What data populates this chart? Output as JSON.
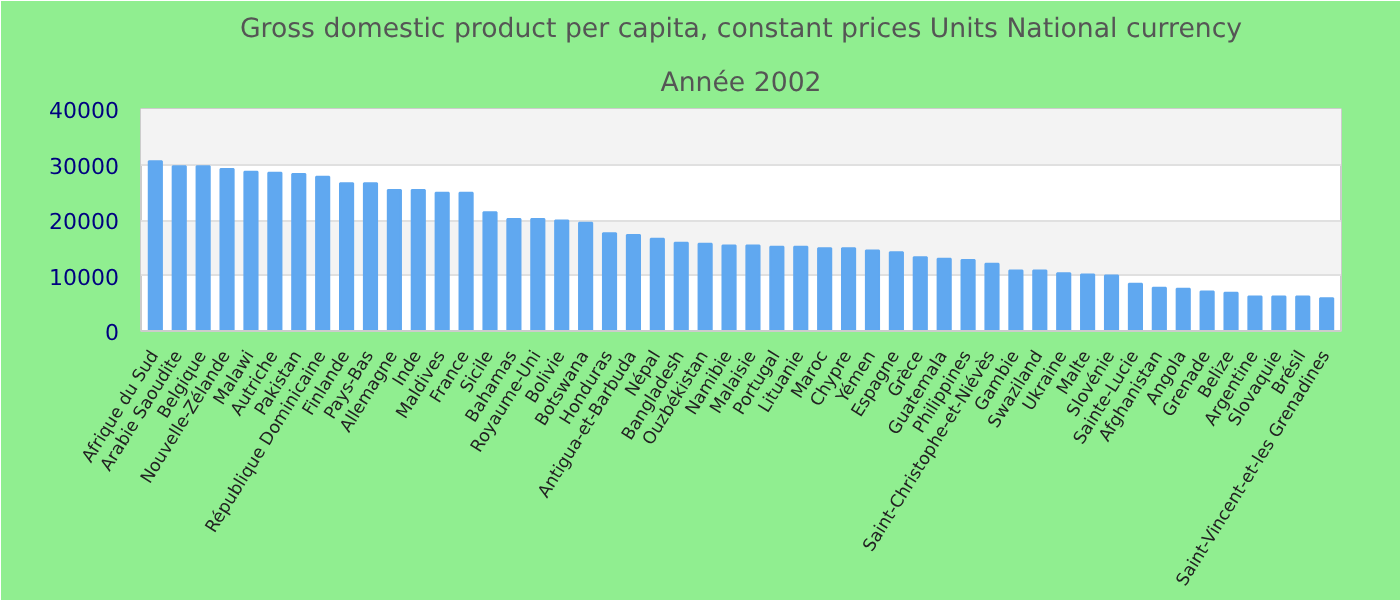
{
  "chart_data": {
    "type": "bar",
    "title": "Gross domestic product per capita, constant prices Units National currency",
    "subtitle": "Année 2002",
    "categories": [
      "Afrique du Sud",
      "Arabie Saoudite",
      "Belgique",
      "Nouvelle-Zélande",
      "Malawi",
      "Autriche",
      "Pakistan",
      "République Dominicaine",
      "Finlande",
      "Pays-Bas",
      "Allemagne",
      "Inde",
      "Maldives",
      "France",
      "Sicile",
      "Bahamas",
      "Royaume-Uni",
      "Bolivie",
      "Botswana",
      "Honduras",
      "Antigua-et-Barbuda",
      "Népal",
      "Bangladesh",
      "Ouzbékistan",
      "Namibie",
      "Malaisie",
      "Portugal",
      "Lituanie",
      "Maroc",
      "Chypre",
      "Yémen",
      "Espagne",
      "Grèce",
      "Guatemala",
      "Philippines",
      "Saint-Christophe-et-Niévès",
      "Gambie",
      "Swaziland",
      "Ukraine",
      "Malte",
      "Slovénie",
      "Sainte-Lucie",
      "Afghanistan",
      "Angola",
      "Grenade",
      "Belize",
      "Argentine",
      "Slovaquie",
      "Brésil",
      "Saint-Vincent-et-les Grenadines"
    ],
    "values": [
      30600,
      29700,
      29700,
      29200,
      28700,
      28500,
      28300,
      27800,
      26600,
      26600,
      25400,
      25400,
      24900,
      24900,
      21400,
      20200,
      20200,
      19900,
      19500,
      17600,
      17300,
      16600,
      15900,
      15700,
      15400,
      15400,
      15200,
      15200,
      14900,
      14900,
      14500,
      14200,
      13300,
      13000,
      12800,
      12100,
      10900,
      10900,
      10400,
      10200,
      10000,
      8500,
      7800,
      7600,
      7100,
      6900,
      6200,
      6200,
      6200,
      5900
    ],
    "color": "#60a8f0",
    "ylim": [
      0,
      40000
    ],
    "yticks": [
      0,
      10000,
      20000,
      30000,
      40000
    ],
    "grid": "y"
  }
}
